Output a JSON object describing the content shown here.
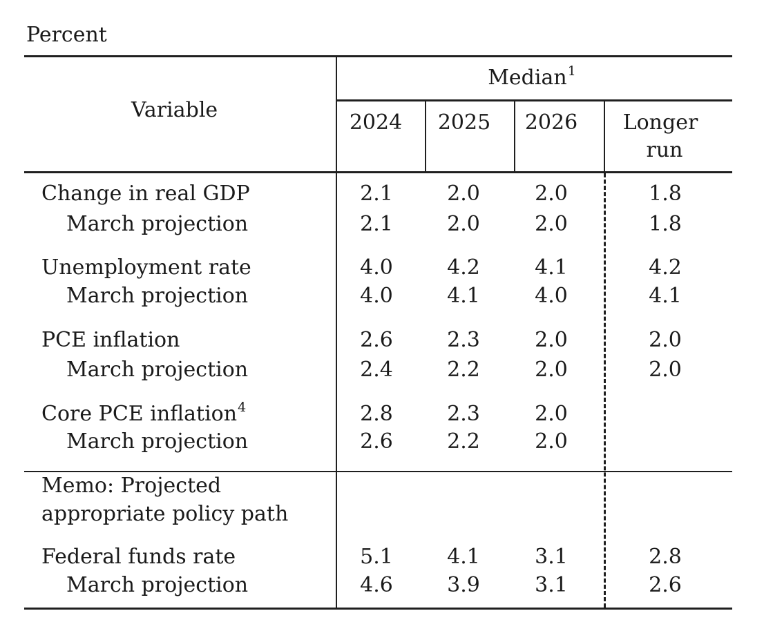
{
  "unit_label": "Percent",
  "header": {
    "variable": "Variable",
    "median": "Median",
    "median_note": "1",
    "years": [
      "2024",
      "2025",
      "2026"
    ],
    "longer_run_line1": "Longer",
    "longer_run_line2": "run"
  },
  "groups": [
    {
      "label": "Change in real GDP",
      "note": "",
      "values": [
        "2.1",
        "2.0",
        "2.0",
        "1.8"
      ],
      "sub_label": "March projection",
      "sub_values": [
        "2.1",
        "2.0",
        "2.0",
        "1.8"
      ]
    },
    {
      "label": "Unemployment rate",
      "note": "",
      "values": [
        "4.0",
        "4.2",
        "4.1",
        "4.2"
      ],
      "sub_label": "March projection",
      "sub_values": [
        "4.0",
        "4.1",
        "4.0",
        "4.1"
      ]
    },
    {
      "label": "PCE inflation",
      "note": "",
      "values": [
        "2.6",
        "2.3",
        "2.0",
        "2.0"
      ],
      "sub_label": "March projection",
      "sub_values": [
        "2.4",
        "2.2",
        "2.0",
        "2.0"
      ]
    },
    {
      "label": "Core PCE inflation",
      "note": "4",
      "values": [
        "2.8",
        "2.3",
        "2.0",
        ""
      ],
      "sub_label": "March projection",
      "sub_values": [
        "2.6",
        "2.2",
        "2.0",
        ""
      ]
    }
  ],
  "memo": {
    "line1": "Memo: Projected",
    "line2": "appropriate policy path",
    "label": "Federal funds rate",
    "values": [
      "5.1",
      "4.1",
      "3.1",
      "2.8"
    ],
    "sub_label": "March projection",
    "sub_values": [
      "4.6",
      "3.9",
      "3.1",
      "2.6"
    ]
  }
}
